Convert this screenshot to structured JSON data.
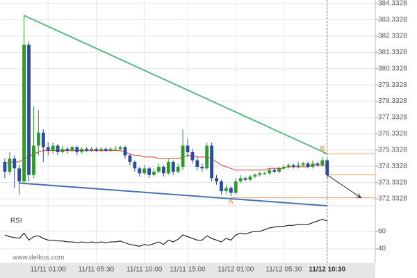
{
  "chart_data": {
    "type": "candlestick",
    "x": [
      0,
      1,
      2,
      3,
      4,
      5,
      6,
      7,
      8,
      9,
      10,
      11,
      12,
      13,
      14,
      15,
      16,
      17,
      18,
      19,
      20,
      21,
      22,
      23,
      24,
      25,
      26,
      27,
      28,
      29,
      30,
      31,
      32,
      33,
      34,
      35,
      36,
      37,
      38,
      39,
      40,
      41,
      42,
      43,
      44,
      45,
      46,
      47,
      48,
      49,
      50,
      51,
      52,
      53,
      54,
      55,
      56,
      57,
      58,
      59,
      60,
      61,
      62,
      63,
      64,
      65,
      66,
      67
    ],
    "open": [
      374.6,
      374.0,
      374.8,
      374.2,
      373.4,
      381.8,
      373.8,
      375.6,
      376.4,
      375.5,
      375.3,
      375.6,
      375.2,
      375.4,
      375.3,
      375.5,
      375.2,
      375.4,
      375.3,
      375.4,
      375.3,
      375.4,
      375.3,
      375.4,
      375.4,
      375.5,
      375.0,
      374.6,
      374.2,
      373.9,
      374.2,
      373.8,
      374.0,
      374.3,
      373.9,
      374.6,
      374.0,
      374.3,
      375.6,
      375.2,
      374.7,
      374.3,
      374.2,
      375.6,
      373.6,
      373.4,
      372.8,
      373.0,
      372.7,
      373.4,
      373.6,
      373.5,
      373.7,
      373.8,
      373.9,
      373.9,
      374.1,
      374.0,
      374.2,
      374.3,
      374.4,
      374.3,
      374.4,
      374.5,
      374.3,
      374.5,
      374.4,
      374.7
    ],
    "high": [
      374.8,
      375.2,
      375.0,
      374.4,
      383.6,
      382.0,
      378.0,
      377.8,
      376.6,
      375.8,
      375.8,
      375.7,
      375.6,
      375.5,
      375.6,
      375.6,
      375.5,
      375.5,
      375.5,
      375.5,
      375.5,
      375.5,
      375.5,
      375.6,
      375.6,
      375.6,
      375.1,
      374.7,
      374.3,
      374.4,
      374.3,
      374.2,
      374.5,
      374.4,
      374.8,
      374.7,
      374.5,
      376.6,
      376.0,
      375.4,
      374.9,
      374.5,
      375.8,
      375.8,
      373.8,
      373.5,
      373.2,
      373.1,
      373.6,
      373.8,
      373.7,
      373.8,
      373.9,
      374.0,
      374.0,
      374.2,
      374.2,
      374.3,
      374.4,
      374.5,
      374.5,
      374.6,
      374.6,
      374.6,
      374.7,
      374.6,
      374.9,
      374.8
    ],
    "low": [
      373.6,
      373.8,
      373.0,
      372.6,
      373.2,
      373.4,
      373.6,
      375.0,
      374.6,
      375.0,
      375.1,
      375.0,
      375.1,
      375.1,
      375.2,
      375.0,
      375.1,
      375.2,
      375.2,
      375.2,
      375.2,
      375.2,
      375.2,
      375.3,
      375.3,
      374.8,
      374.4,
      374.0,
      373.7,
      373.8,
      373.6,
      373.7,
      373.9,
      373.7,
      373.8,
      373.8,
      373.9,
      374.1,
      374.9,
      374.5,
      374.1,
      374.0,
      374.1,
      373.4,
      373.2,
      372.6,
      372.6,
      372.5,
      372.6,
      373.3,
      373.4,
      373.4,
      373.6,
      373.7,
      373.8,
      373.8,
      373.9,
      373.9,
      374.1,
      374.2,
      374.2,
      374.2,
      374.3,
      374.2,
      374.2,
      374.3,
      374.3,
      373.6
    ],
    "close": [
      374.0,
      374.8,
      374.2,
      373.4,
      381.8,
      373.8,
      375.6,
      376.4,
      375.5,
      375.3,
      375.6,
      375.2,
      375.4,
      375.3,
      375.5,
      375.2,
      375.4,
      375.3,
      375.4,
      375.3,
      375.4,
      375.3,
      375.4,
      375.4,
      375.5,
      375.0,
      374.6,
      374.2,
      373.9,
      374.2,
      373.8,
      374.0,
      374.3,
      373.9,
      374.6,
      374.0,
      374.3,
      375.6,
      375.2,
      374.7,
      374.3,
      374.2,
      375.6,
      373.6,
      373.4,
      372.8,
      373.0,
      372.7,
      373.4,
      373.6,
      373.5,
      373.7,
      373.8,
      373.9,
      373.9,
      374.1,
      374.0,
      374.2,
      374.3,
      374.4,
      374.3,
      374.4,
      374.5,
      374.3,
      374.5,
      374.4,
      374.7,
      373.8
    ],
    "up_color": "#2e9a2e",
    "down_color": "#2b4c9b",
    "ma": {
      "color": "#e03a2e",
      "values": [
        374.5,
        374.6,
        374.6,
        374.6,
        374.8,
        374.9,
        375.1,
        375.2,
        375.3,
        375.3,
        375.3,
        375.3,
        375.3,
        375.3,
        375.3,
        375.3,
        375.3,
        375.3,
        375.3,
        375.3,
        375.3,
        375.3,
        375.3,
        375.3,
        375.3,
        375.2,
        375.1,
        375.0,
        375.0,
        374.9,
        374.9,
        374.9,
        374.8,
        374.8,
        374.8,
        374.8,
        374.8,
        374.9,
        375.0,
        375.0,
        374.9,
        374.9,
        374.9,
        374.8,
        374.6,
        374.4,
        374.3,
        374.2,
        374.1,
        374.1,
        374.1,
        374.1,
        374.1,
        374.1,
        374.1,
        374.2,
        374.2,
        374.2,
        374.2,
        374.3,
        374.3,
        374.3,
        374.3,
        374.3,
        374.4,
        374.4,
        374.4,
        374.4
      ]
    },
    "xlim": [
      -1,
      77
    ],
    "ylim": [
      371.95,
      384.55
    ],
    "yticks": [
      384.3328,
      383.3328,
      382.3328,
      381.3328,
      380.3328,
      379.3328,
      378.3328,
      377.3328,
      376.3328,
      375.3328,
      374.3328,
      373.3328,
      372.3328
    ],
    "xticks": [
      {
        "value": 9,
        "label": "11/11 01:00"
      },
      {
        "value": 19,
        "label": "11/11 05:30"
      },
      {
        "value": 29,
        "label": "11/11 10:00"
      },
      {
        "value": 38,
        "label": "11/11 15:00"
      },
      {
        "value": 48,
        "label": "11/12 01:00"
      },
      {
        "value": 58,
        "label": "11/12 05:30"
      },
      {
        "value": 67,
        "label": "11/12 10:30"
      }
    ],
    "grid": true,
    "trendlines": [
      {
        "color": "#5cb885",
        "x": [
          4,
          67
        ],
        "y": [
          383.6,
          375.1
        ]
      },
      {
        "color": "#4a6fb5",
        "x": [
          3,
          67
        ],
        "y": [
          373.3,
          371.9
        ]
      }
    ],
    "levels": [
      {
        "color": "#f0a060",
        "from": 66,
        "value": 375.1
      },
      {
        "color": "#f0a060",
        "from": 67,
        "value": 373.8
      },
      {
        "color": "#f0a060",
        "from": 47,
        "value": 372.4
      }
    ],
    "annotations": [
      {
        "text": "A",
        "x": 47,
        "y": 372.5
      },
      {
        "text": "B",
        "x": 66,
        "y": 375.1
      }
    ],
    "arrow": {
      "x": [
        67,
        74
      ],
      "y": [
        373.8,
        372.4
      ]
    },
    "cursor_x": 67,
    "rsi": {
      "label": "RSI",
      "color": "#000000",
      "ylim": [
        26.4,
        86.4
      ],
      "yticks": [
        60,
        40
      ],
      "values": [
        56,
        54,
        53,
        52,
        58,
        50,
        54,
        55,
        52,
        50,
        50,
        49,
        49,
        48,
        48,
        47,
        48,
        47,
        48,
        47,
        48,
        47,
        48,
        48,
        49,
        47,
        45,
        44,
        43,
        45,
        44,
        46,
        48,
        45,
        50,
        48,
        51,
        56,
        54,
        52,
        50,
        50,
        55,
        52,
        50,
        48,
        52,
        50,
        56,
        58,
        57,
        59,
        60,
        60,
        62,
        64,
        65,
        66,
        66,
        67,
        67,
        68,
        68,
        68,
        70,
        72,
        74,
        72
      ]
    },
    "watermark": "www.delkos.com"
  }
}
